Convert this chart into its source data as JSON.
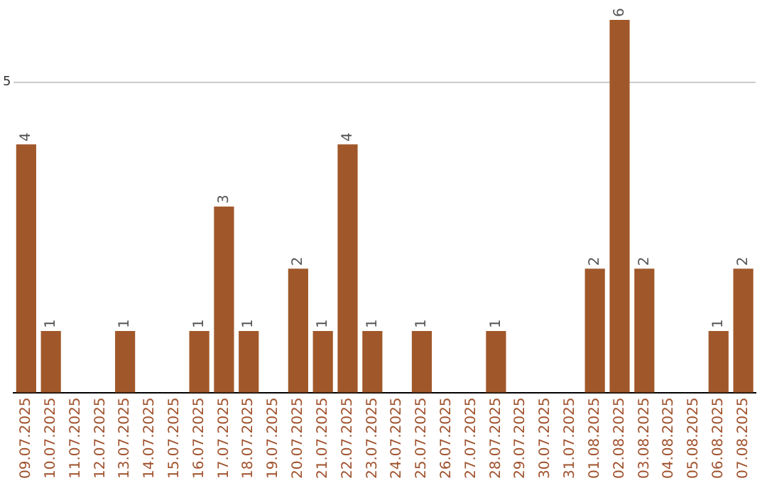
{
  "chart_data": {
    "type": "bar",
    "categories": [
      "09.07.2025",
      "10.07.2025",
      "11.07.2025",
      "12.07.2025",
      "13.07.2025",
      "14.07.2025",
      "15.07.2025",
      "16.07.2025",
      "17.07.2025",
      "18.07.2025",
      "19.07.2025",
      "20.07.2025",
      "21.07.2025",
      "22.07.2025",
      "23.07.2025",
      "24.07.2025",
      "25.07.2025",
      "26.07.2025",
      "27.07.2025",
      "28.07.2025",
      "29.07.2025",
      "30.07.2025",
      "31.07.2025",
      "01.08.2025",
      "02.08.2025",
      "03.08.2025",
      "04.08.2025",
      "05.08.2025",
      "06.08.2025",
      "07.08.2025"
    ],
    "values": [
      4,
      1,
      0,
      0,
      1,
      0,
      0,
      1,
      3,
      1,
      0,
      2,
      1,
      4,
      1,
      0,
      1,
      0,
      0,
      1,
      0,
      0,
      0,
      2,
      6,
      2,
      0,
      0,
      1,
      2
    ],
    "value_labels": [
      "4",
      "1",
      null,
      null,
      "1",
      null,
      null,
      "1",
      "3",
      "1",
      null,
      "2",
      "1",
      "4",
      "1",
      null,
      "1",
      null,
      null,
      "1",
      null,
      null,
      null,
      "2",
      "6",
      "2",
      null,
      null,
      "1",
      "2"
    ],
    "color": "#a0582a",
    "ylim": [
      0,
      6
    ],
    "yticks": [
      {
        "value": 0,
        "label": null
      },
      5
    ],
    "grid": "y",
    "legend": false
  }
}
